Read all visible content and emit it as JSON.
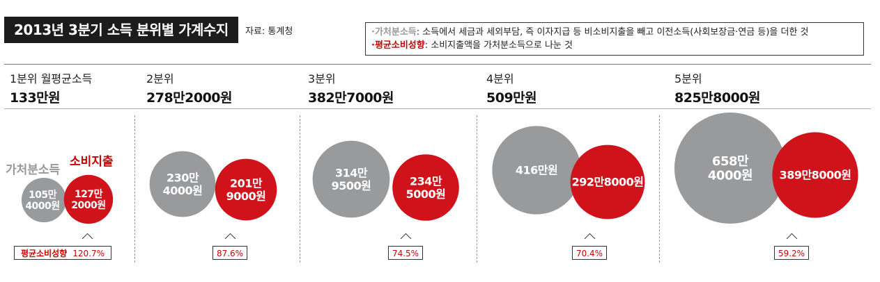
{
  "header": {
    "title": "2013년 3분기 소득 분위별 가계수지",
    "source": "자료: 통계청"
  },
  "definitions": [
    {
      "marker": "·",
      "term": "가처분소득",
      "text": ": 소득에서 세금과 세외부담, 즉 이자지급 등 비소비지출을 빼고 이전소득(사회보장금·연금 등)을 더한 것"
    },
    {
      "marker": "·",
      "term": "평균소비성향",
      "text": ": 소비지출액을 가처분소득으로 나눈 것"
    }
  ],
  "legend": {
    "disposable": "가처분소득",
    "spending": "소비지출"
  },
  "callout_label": "평균소비성향",
  "colors": {
    "disposable": "#999a9c",
    "spending": "#d0121b",
    "text_on_circle": "#ffffff"
  },
  "chart_data": {
    "type": "bubble",
    "title": "2013년 3분기 소득 분위별 가계수지",
    "unit": "만원",
    "series": [
      {
        "name": "가처분소득",
        "values": [
          105.4,
          230.4,
          314.95,
          416,
          658.4
        ]
      },
      {
        "name": "소비지출",
        "values": [
          127.2,
          201.9,
          234.5,
          292.8,
          389.8
        ]
      }
    ],
    "quintiles": [
      {
        "label": "1분위 월평균소득",
        "income": "133만원",
        "disposable": 105.4,
        "disposable_label": [
          "105만",
          "4000원"
        ],
        "spending": 127.2,
        "spending_label": [
          "127만",
          "2000원"
        ],
        "propensity": "120.7%"
      },
      {
        "label": "2분위",
        "income": "278만2000원",
        "disposable": 230.4,
        "disposable_label": [
          "230만",
          "4000원"
        ],
        "spending": 201.9,
        "spending_label": [
          "201만",
          "9000원"
        ],
        "propensity": "87.6%"
      },
      {
        "label": "3분위",
        "income": "382만7000원",
        "disposable": 314.95,
        "disposable_label": [
          "314만",
          "9500원"
        ],
        "spending": 234.5,
        "spending_label": [
          "234만",
          "5000원"
        ],
        "propensity": "74.5%"
      },
      {
        "label": "4분위",
        "income": "509만원",
        "disposable": 416,
        "disposable_label": [
          "416만원"
        ],
        "spending": 292.8,
        "spending_label": [
          "292만8000원"
        ],
        "propensity": "70.4%"
      },
      {
        "label": "5분위",
        "income": "825만8000원",
        "disposable": 658.4,
        "disposable_label": [
          "658만",
          "4000원"
        ],
        "spending": 389.8,
        "spending_label": [
          "389만8000원"
        ],
        "propensity": "59.2%"
      }
    ]
  }
}
